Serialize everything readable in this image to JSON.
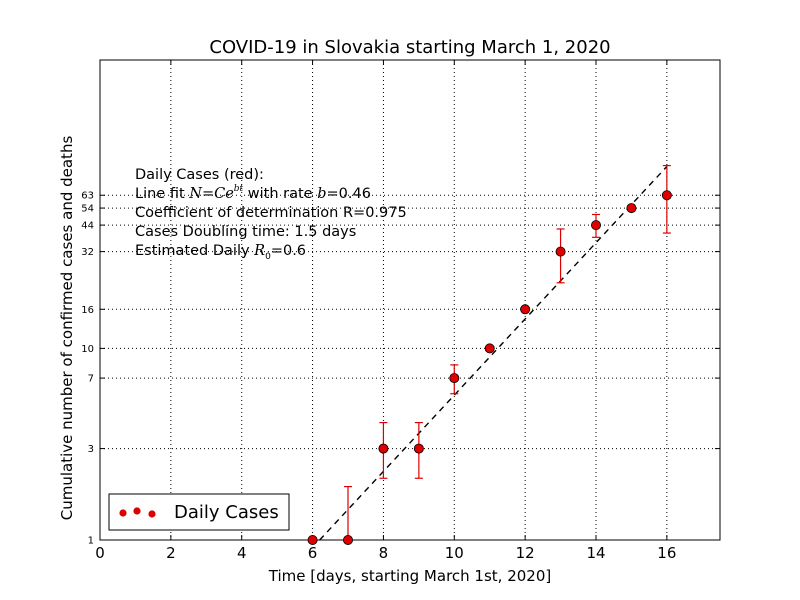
{
  "chart_data": {
    "type": "scatter",
    "title": "COVID-19 in Slovakia starting March 1, 2020",
    "xlabel": "Time [days, starting March 1st, 2020]",
    "ylabel": "Cumulative number of confirmed cases and deaths",
    "xlim": [
      0,
      17.5
    ],
    "ylim": [
      1,
      320
    ],
    "yscale": "log",
    "grid": true,
    "x_ticks": [
      0,
      2,
      4,
      6,
      8,
      10,
      12,
      14,
      16
    ],
    "y_ticks": [
      1,
      3,
      7,
      10,
      16,
      32,
      44,
      54,
      63
    ],
    "legend_position": "bottom-left",
    "series": [
      {
        "name": "Daily Cases",
        "color": "#dd0000",
        "x": [
          6,
          7,
          8,
          9,
          10,
          11,
          12,
          13,
          14,
          15,
          16
        ],
        "y": [
          1,
          1,
          3,
          3,
          7,
          10,
          16,
          32,
          44,
          54,
          63
        ],
        "yerr_low": [
          1,
          1,
          2.1,
          2.1,
          5.8,
          10,
          16,
          22,
          38,
          54,
          40
        ],
        "yerr_high": [
          1,
          1.9,
          4.1,
          4.1,
          8.2,
          10,
          16,
          42,
          50,
          54,
          90
        ]
      }
    ],
    "fit_line": {
      "x": [
        6.2,
        16
      ],
      "y": [
        0.9,
        89
      ]
    },
    "annotation_lines": [
      {
        "type": "text",
        "text": "Daily Cases (red):"
      },
      {
        "type": "math",
        "pre": "Line fit ",
        "math": "N=Ce",
        "sup": "bt",
        "mid": "  with rate ",
        "math2": "b",
        "post": "=0.46"
      },
      {
        "type": "text",
        "text": "Coefficient of determination R=0.975"
      },
      {
        "type": "text",
        "text": "Cases Doubling time: 1.5 days"
      },
      {
        "type": "math_sub",
        "pre": "Estimated Daily ",
        "math": "R",
        "sub": "0",
        "post": "=0.6"
      }
    ]
  }
}
